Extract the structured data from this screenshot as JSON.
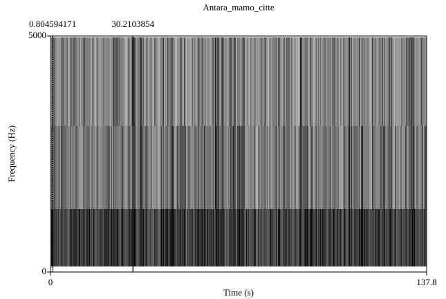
{
  "chart_data": {
    "type": "spectrogram",
    "title": "Antara_mamo_citte",
    "x_label": "Time (s)",
    "y_label": "Frequency (Hz)",
    "xlim": [
      0,
      137.8
    ],
    "ylim": [
      0,
      5000
    ],
    "xticks": [
      0,
      137.8
    ],
    "yticks": [
      0,
      5000
    ],
    "markers": [
      0.804594171,
      30.2103854
    ]
  }
}
